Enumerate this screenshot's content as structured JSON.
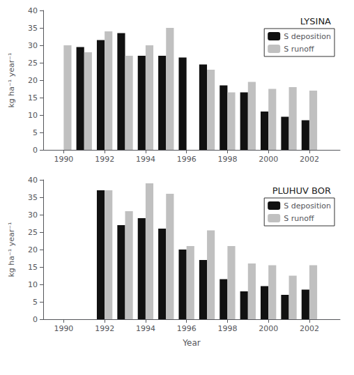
{
  "chart_data": [
    {
      "type": "bar",
      "title": "LYSINA",
      "x": [
        1990,
        1991,
        1992,
        1993,
        1994,
        1995,
        1996,
        1997,
        1998,
        1999,
        2000,
        2001,
        2002
      ],
      "series": [
        {
          "name": "S deposition",
          "color": "#111111",
          "values": [
            null,
            29.5,
            31.5,
            33.5,
            27.0,
            27.0,
            26.5,
            24.5,
            18.5,
            16.5,
            11.0,
            9.5,
            8.5
          ]
        },
        {
          "name": "S runoff",
          "color": "#c0c0c0",
          "values": [
            30.0,
            28.0,
            34.0,
            27.0,
            30.0,
            35.0,
            null,
            23.0,
            16.5,
            19.5,
            17.5,
            18.0,
            17.0
          ]
        }
      ],
      "ylabel": "kg ha⁻¹ year⁻¹",
      "xlim": [
        1989.0,
        2003.5
      ],
      "xticks": [
        1990,
        1992,
        1994,
        1996,
        1998,
        2000,
        2002
      ],
      "ylim": [
        0,
        40
      ],
      "yticks": [
        0,
        5,
        10,
        15,
        20,
        25,
        30,
        35,
        40
      ],
      "grid": false,
      "legend": "upper right"
    },
    {
      "type": "bar",
      "title": "PLUHUV BOR",
      "x": [
        1990,
        1991,
        1992,
        1993,
        1994,
        1995,
        1996,
        1997,
        1998,
        1999,
        2000,
        2001,
        2002
      ],
      "series": [
        {
          "name": "S deposition",
          "color": "#111111",
          "values": [
            null,
            null,
            37.0,
            27.0,
            29.0,
            26.0,
            20.0,
            17.0,
            11.5,
            8.0,
            9.5,
            7.0,
            8.5
          ]
        },
        {
          "name": "S runoff",
          "color": "#c0c0c0",
          "values": [
            null,
            null,
            37.0,
            31.0,
            39.0,
            36.0,
            21.0,
            25.5,
            21.0,
            16.0,
            15.5,
            12.5,
            15.5
          ]
        }
      ],
      "xlabel": "Year",
      "ylabel": "kg ha⁻¹ year⁻¹",
      "xlim": [
        1989.0,
        2003.5
      ],
      "xticks": [
        1990,
        1992,
        1994,
        1996,
        1998,
        2000,
        2002
      ],
      "ylim": [
        0,
        40
      ],
      "yticks": [
        0,
        5,
        10,
        15,
        20,
        25,
        30,
        35,
        40
      ],
      "grid": false,
      "legend": "upper right"
    }
  ]
}
